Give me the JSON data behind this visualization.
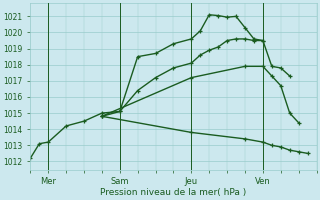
{
  "xlabel": "Pression niveau de la mer( hPa )",
  "ylim": [
    1011.5,
    1021.8
  ],
  "xlim": [
    0,
    96
  ],
  "yticks": [
    1012,
    1013,
    1014,
    1015,
    1016,
    1017,
    1018,
    1019,
    1020,
    1021
  ],
  "xtick_positions": [
    6,
    30,
    54,
    78
  ],
  "xtick_labels": [
    "Mer",
    "Sam",
    "Jeu",
    "Ven"
  ],
  "vline_positions": [
    6,
    30,
    54,
    78
  ],
  "bg_color": "#cce8ee",
  "grid_color": "#99cccc",
  "line_color": "#1a5c20",
  "marker_size": 3.5,
  "linewidth": 1.0,
  "series": [
    {
      "x": [
        0,
        3,
        6,
        12,
        18,
        24,
        30,
        36,
        42,
        48,
        54,
        57,
        60,
        63,
        66,
        69,
        72,
        75,
        78,
        81,
        84,
        87,
        90,
        93,
        96
      ],
      "y": [
        1012.2,
        1013.1,
        1013.2,
        1014.2,
        1014.5,
        1015.0,
        1015.1,
        1018.5,
        1018.7,
        1019.3,
        1019.6,
        1020.1,
        1021.1,
        1021.05,
        1020.95,
        1021.0,
        1020.3,
        1019.6,
        1019.5,
        null,
        null,
        null,
        null,
        null,
        null
      ]
    },
    {
      "x": [
        24,
        30,
        36,
        42,
        48,
        54,
        57,
        60,
        63,
        66,
        69,
        72,
        75,
        78,
        81,
        84,
        87,
        90,
        93,
        96
      ],
      "y": [
        1014.8,
        1015.1,
        1016.4,
        1017.2,
        1017.8,
        1018.1,
        1018.6,
        1018.9,
        1019.1,
        1019.5,
        1019.6,
        1019.6,
        1019.5,
        1019.5,
        1017.9,
        1017.8,
        1017.3,
        null,
        null,
        null
      ]
    },
    {
      "x": [
        24,
        54,
        72,
        78,
        81,
        84,
        87,
        90,
        93,
        96
      ],
      "y": [
        1014.8,
        1017.2,
        1017.9,
        1017.9,
        1017.3,
        1016.7,
        1015.0,
        1014.4,
        null,
        null
      ]
    },
    {
      "x": [
        24,
        54,
        72,
        78,
        81,
        84,
        87,
        90,
        93,
        96
      ],
      "y": [
        1014.8,
        1013.8,
        1013.4,
        1013.2,
        1013.0,
        1012.9,
        1012.7,
        1012.6,
        1012.5,
        null
      ]
    }
  ]
}
